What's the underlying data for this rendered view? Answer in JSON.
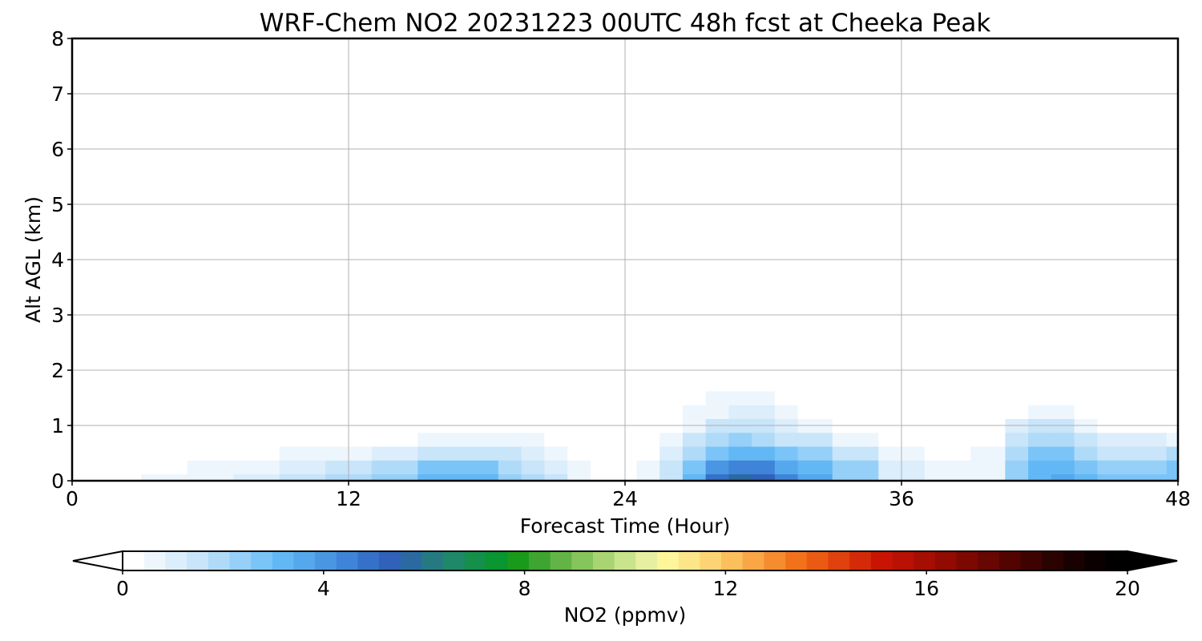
{
  "chart_data": {
    "type": "heatmap",
    "title": "WRF-Chem NO2  20231223 00UTC 48h fcst at Cheeka Peak",
    "xlabel": "Forecast Time (Hour)",
    "ylabel": "Alt AGL (km)",
    "xlim": [
      0,
      48
    ],
    "ylim": [
      0,
      8
    ],
    "xticks": [
      0,
      12,
      24,
      36,
      48
    ],
    "yticks": [
      0,
      1,
      2,
      3,
      4,
      5,
      6,
      7,
      8
    ],
    "grid": true,
    "colorbar": {
      "label": "NO2  (ppmv)",
      "min": 0,
      "max": 20,
      "ticks": [
        0,
        4,
        8,
        12,
        16,
        20
      ],
      "extend": "both",
      "colors": [
        "#ffffff",
        "#eef6fd",
        "#dcedfb",
        "#c8e5fa",
        "#b0dbf8",
        "#96d0f8",
        "#7ac4f8",
        "#62b8f4",
        "#55a8ec",
        "#4a96e2",
        "#3f84d8",
        "#3571c8",
        "#2f62b8",
        "#2a6aa0",
        "#257a82",
        "#1f8868",
        "#14904a",
        "#0a9630",
        "#1a9a1a",
        "#3ea432",
        "#62b446",
        "#86c45c",
        "#a8d474",
        "#c8e48c",
        "#e6f0a0",
        "#fff59a",
        "#fde68a",
        "#fcd473",
        "#fbbf5c",
        "#f9a646",
        "#f68c30",
        "#f2721c",
        "#ea5a12",
        "#df420c",
        "#d42a08",
        "#c91404",
        "#b91104",
        "#a60e03",
        "#920b02",
        "#7d0802",
        "#680601",
        "#530401",
        "#3e0301",
        "#2a0200",
        "#180100",
        "#0a0000",
        "#000000"
      ],
      "under_color": "#ffffff",
      "over_color": "#000000"
    },
    "x": [
      0,
      2,
      4,
      6,
      8,
      10,
      12,
      14,
      16,
      17,
      18,
      19,
      20,
      21,
      22,
      23,
      24,
      25,
      26,
      27,
      28,
      29,
      30,
      31,
      32,
      34,
      36,
      38,
      40,
      41,
      42,
      43,
      44,
      45,
      46,
      47,
      48
    ],
    "y": [
      0,
      0.25,
      0.5,
      0.75,
      1.0,
      1.25,
      1.5,
      1.75,
      2.0,
      2.5,
      3,
      4,
      5,
      6,
      7,
      8
    ],
    "z": [
      [
        0.2,
        0.3,
        0.5,
        0.7,
        1.0,
        1.5,
        2.0,
        2.5,
        3.0,
        3.2,
        3.0,
        2.5,
        2.0,
        1.5,
        0.8,
        0.2,
        0.1,
        0.6,
        1.6,
        3.0,
        4.8,
        5.6,
        5.4,
        4.4,
        3.6,
        2.5,
        1.2,
        0.6,
        0.8,
        2.4,
        3.4,
        3.6,
        3.2,
        2.9,
        2.7,
        2.8,
        2.9
      ],
      [
        0.15,
        0.2,
        0.35,
        0.5,
        0.8,
        1.1,
        1.5,
        2.0,
        2.6,
        2.8,
        2.6,
        2.1,
        1.6,
        1.2,
        0.6,
        0.15,
        0.1,
        0.5,
        1.4,
        2.6,
        4.0,
        4.6,
        4.5,
        3.7,
        3.1,
        2.2,
        1.0,
        0.5,
        0.7,
        2.2,
        3.2,
        3.4,
        2.8,
        2.5,
        2.4,
        2.5,
        2.6
      ],
      [
        0.1,
        0.12,
        0.15,
        0.2,
        0.3,
        0.5,
        0.8,
        1.1,
        1.5,
        1.7,
        1.6,
        1.3,
        1.0,
        0.7,
        0.4,
        0.1,
        0.05,
        0.3,
        1.0,
        2.0,
        2.9,
        3.3,
        3.2,
        2.7,
        2.2,
        1.5,
        0.6,
        0.3,
        0.5,
        1.8,
        2.6,
        2.7,
        2.0,
        1.7,
        1.6,
        1.7,
        1.8
      ],
      [
        0.08,
        0.08,
        0.08,
        0.1,
        0.12,
        0.2,
        0.3,
        0.4,
        0.6,
        0.7,
        0.7,
        0.6,
        0.5,
        0.4,
        0.2,
        0.05,
        0.03,
        0.2,
        0.6,
        1.3,
        2.0,
        2.2,
        2.1,
        1.7,
        1.3,
        0.8,
        0.3,
        0.15,
        0.3,
        1.4,
        2.0,
        2.0,
        1.3,
        1.0,
        0.9,
        0.9,
        0.8
      ],
      [
        0.03,
        0.02,
        0.02,
        0.03,
        0.04,
        0.06,
        0.1,
        0.15,
        0.2,
        0.25,
        0.28,
        0.3,
        0.3,
        0.3,
        0.15,
        0.03,
        0.02,
        0.1,
        0.3,
        0.8,
        1.3,
        1.5,
        1.4,
        1.1,
        0.7,
        0.4,
        0.12,
        0.06,
        0.15,
        0.9,
        1.4,
        1.3,
        0.7,
        0.4,
        0.3,
        0.3,
        0.2
      ],
      [
        0.01,
        0.01,
        0.01,
        0.01,
        0.01,
        0.02,
        0.04,
        0.06,
        0.1,
        0.12,
        0.14,
        0.16,
        0.18,
        0.18,
        0.1,
        0.02,
        0.01,
        0.05,
        0.15,
        0.45,
        0.8,
        1.0,
        0.9,
        0.7,
        0.4,
        0.2,
        0.05,
        0.03,
        0.05,
        0.4,
        0.6,
        0.5,
        0.2,
        0.1,
        0.05,
        0.05,
        0.05
      ],
      [
        0,
        0,
        0,
        0,
        0,
        0.01,
        0.01,
        0.02,
        0.03,
        0.04,
        0.05,
        0.06,
        0.07,
        0.07,
        0.04,
        0.01,
        0,
        0.02,
        0.08,
        0.25,
        0.5,
        0.6,
        0.55,
        0.4,
        0.2,
        0.08,
        0.02,
        0.01,
        0.02,
        0.12,
        0.2,
        0.15,
        0.05,
        0.02,
        0.01,
        0.01,
        0.01
      ],
      [
        0,
        0,
        0,
        0,
        0,
        0,
        0,
        0.01,
        0.01,
        0.01,
        0.02,
        0.02,
        0.02,
        0.02,
        0.01,
        0,
        0,
        0.01,
        0.03,
        0.1,
        0.2,
        0.28,
        0.25,
        0.15,
        0.08,
        0.03,
        0.01,
        0,
        0.01,
        0.03,
        0.05,
        0.04,
        0.01,
        0,
        0,
        0,
        0
      ],
      [
        0,
        0,
        0,
        0,
        0,
        0,
        0,
        0,
        0,
        0,
        0,
        0,
        0,
        0,
        0,
        0,
        0,
        0,
        0.01,
        0.03,
        0.06,
        0.08,
        0.07,
        0.04,
        0.02,
        0.01,
        0,
        0,
        0,
        0.01,
        0.01,
        0.01,
        0,
        0,
        0,
        0,
        0
      ],
      [
        0,
        0,
        0,
        0,
        0,
        0,
        0,
        0,
        0,
        0,
        0,
        0,
        0,
        0,
        0,
        0,
        0,
        0,
        0,
        0.01,
        0.01,
        0.01,
        0.01,
        0.01,
        0,
        0,
        0,
        0,
        0,
        0,
        0,
        0,
        0,
        0,
        0,
        0,
        0
      ],
      [
        0,
        0,
        0,
        0,
        0,
        0,
        0,
        0,
        0,
        0,
        0,
        0,
        0,
        0,
        0,
        0,
        0,
        0,
        0,
        0,
        0,
        0,
        0,
        0,
        0,
        0,
        0,
        0,
        0,
        0,
        0,
        0,
        0,
        0,
        0,
        0,
        0
      ],
      [
        0,
        0,
        0,
        0,
        0,
        0,
        0,
        0,
        0,
        0,
        0,
        0,
        0,
        0,
        0,
        0,
        0,
        0,
        0,
        0,
        0,
        0,
        0,
        0,
        0,
        0,
        0,
        0,
        0,
        0,
        0,
        0,
        0,
        0,
        0,
        0,
        0
      ],
      [
        0,
        0,
        0,
        0,
        0,
        0,
        0,
        0,
        0,
        0,
        0,
        0,
        0,
        0,
        0,
        0,
        0,
        0,
        0,
        0,
        0,
        0,
        0,
        0,
        0,
        0,
        0,
        0,
        0,
        0,
        0,
        0,
        0,
        0,
        0,
        0,
        0
      ],
      [
        0,
        0,
        0,
        0,
        0,
        0,
        0,
        0,
        0,
        0,
        0,
        0,
        0,
        0,
        0,
        0,
        0,
        0,
        0,
        0,
        0,
        0,
        0,
        0,
        0,
        0,
        0,
        0,
        0,
        0,
        0,
        0,
        0,
        0,
        0,
        0,
        0
      ],
      [
        0,
        0,
        0,
        0,
        0,
        0,
        0,
        0,
        0,
        0,
        0,
        0,
        0,
        0,
        0,
        0,
        0,
        0,
        0,
        0,
        0,
        0,
        0,
        0,
        0,
        0,
        0,
        0,
        0,
        0,
        0,
        0,
        0,
        0,
        0,
        0,
        0
      ],
      [
        0,
        0,
        0,
        0,
        0,
        0,
        0,
        0,
        0,
        0,
        0,
        0,
        0,
        0,
        0,
        0,
        0,
        0,
        0,
        0,
        0,
        0,
        0,
        0,
        0,
        0,
        0,
        0,
        0,
        0,
        0,
        0,
        0,
        0,
        0,
        0,
        0
      ]
    ]
  }
}
